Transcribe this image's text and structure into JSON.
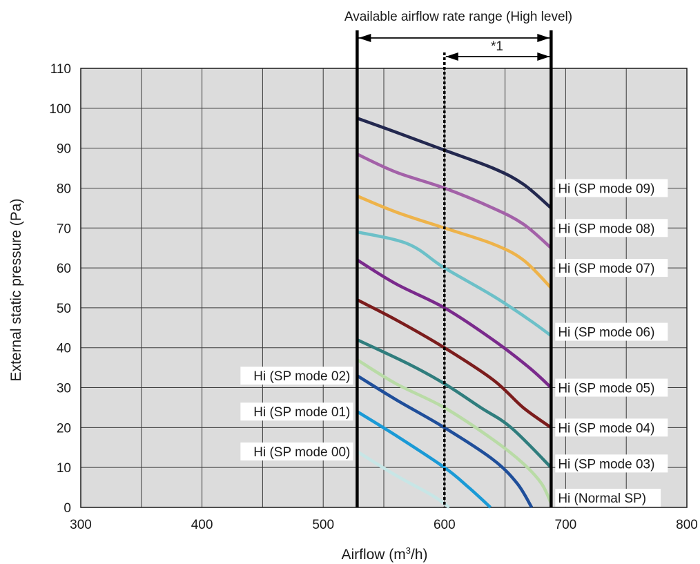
{
  "chart_data": {
    "type": "line",
    "title": "Available airflow rate range (High level)",
    "range_annotation": "*1",
    "xlabel": "Airflow (m3/h)",
    "xlabel_parts": {
      "pre": "Airflow (m",
      "sup": "3",
      "post": "/h)"
    },
    "ylabel": "External static pressure (Pa)",
    "xlim": [
      300,
      800
    ],
    "ylim": [
      0,
      110
    ],
    "xticks": [
      300,
      400,
      500,
      600,
      700,
      800
    ],
    "yticks": [
      0,
      10,
      20,
      30,
      40,
      50,
      60,
      70,
      80,
      90,
      100,
      110
    ],
    "minor_xticks": [
      350,
      450,
      550,
      650,
      750
    ],
    "grid": true,
    "available_range": {
      "min": 528,
      "max": 688
    },
    "dotted_marker_x": 600,
    "series": [
      {
        "name": "Hi (SP mode 00)",
        "color": "#c7e6e6",
        "label_side": "left",
        "label_y": 14,
        "points": [
          [
            528,
            14
          ],
          [
            560,
            8
          ],
          [
            590,
            3
          ],
          [
            604,
            0
          ]
        ]
      },
      {
        "name": "Hi (SP mode 01)",
        "color": "#1a9ad6",
        "label_side": "left",
        "label_y": 24,
        "points": [
          [
            528,
            24
          ],
          [
            560,
            18
          ],
          [
            600,
            10
          ],
          [
            620,
            5
          ],
          [
            638,
            0
          ]
        ]
      },
      {
        "name": "Hi (SP mode 02)",
        "color": "#1f4e9a",
        "label_side": "left",
        "label_y": 33,
        "points": [
          [
            528,
            33
          ],
          [
            560,
            27
          ],
          [
            600,
            20
          ],
          [
            640,
            12
          ],
          [
            660,
            6
          ],
          [
            672,
            0
          ]
        ]
      },
      {
        "name": "Hi (Normal SP)",
        "color": "#b9dba6",
        "label_side": "right",
        "label_y": 2,
        "points": [
          [
            528,
            37
          ],
          [
            560,
            31
          ],
          [
            600,
            25
          ],
          [
            640,
            17
          ],
          [
            665,
            11
          ],
          [
            680,
            6
          ],
          [
            688,
            1
          ]
        ]
      },
      {
        "name": "Hi (SP mode 03)",
        "color": "#2f7d7d",
        "label_side": "right",
        "label_y": 11,
        "points": [
          [
            528,
            42
          ],
          [
            570,
            36
          ],
          [
            600,
            31
          ],
          [
            630,
            25
          ],
          [
            655,
            20
          ],
          [
            688,
            10
          ]
        ]
      },
      {
        "name": "Hi (SP mode 04)",
        "color": "#7b1c1c",
        "label_side": "right",
        "label_y": 20,
        "points": [
          [
            528,
            52
          ],
          [
            560,
            47
          ],
          [
            600,
            40
          ],
          [
            640,
            32
          ],
          [
            665,
            25
          ],
          [
            688,
            20
          ]
        ]
      },
      {
        "name": "Hi (SP mode 05)",
        "color": "#7a2a8c",
        "label_side": "right",
        "label_y": 30,
        "points": [
          [
            528,
            62
          ],
          [
            560,
            56
          ],
          [
            600,
            50
          ],
          [
            640,
            42
          ],
          [
            670,
            35
          ],
          [
            688,
            30
          ]
        ]
      },
      {
        "name": "Hi (SP mode 06)",
        "color": "#6cc0c8",
        "label_side": "right",
        "label_y": 44,
        "points": [
          [
            528,
            69
          ],
          [
            570,
            66
          ],
          [
            600,
            60
          ],
          [
            640,
            53
          ],
          [
            670,
            47
          ],
          [
            688,
            43
          ]
        ]
      },
      {
        "name": "Hi (SP mode 07)",
        "color": "#eeb34a",
        "label_side": "right",
        "label_y": 60,
        "points": [
          [
            528,
            78
          ],
          [
            560,
            74
          ],
          [
            600,
            70
          ],
          [
            640,
            66
          ],
          [
            665,
            62
          ],
          [
            688,
            55
          ]
        ]
      },
      {
        "name": "Hi (SP mode 08)",
        "color": "#a361a8",
        "label_side": "right",
        "label_y": 70,
        "points": [
          [
            528,
            88.5
          ],
          [
            560,
            84
          ],
          [
            600,
            80
          ],
          [
            640,
            75
          ],
          [
            665,
            71
          ],
          [
            688,
            65
          ]
        ]
      },
      {
        "name": "Hi (SP mode 09)",
        "color": "#23284f",
        "label_side": "right",
        "label_y": 80,
        "points": [
          [
            528,
            97.5
          ],
          [
            560,
            94
          ],
          [
            600,
            89.5
          ],
          [
            640,
            85
          ],
          [
            665,
            81
          ],
          [
            688,
            75
          ]
        ]
      }
    ]
  }
}
